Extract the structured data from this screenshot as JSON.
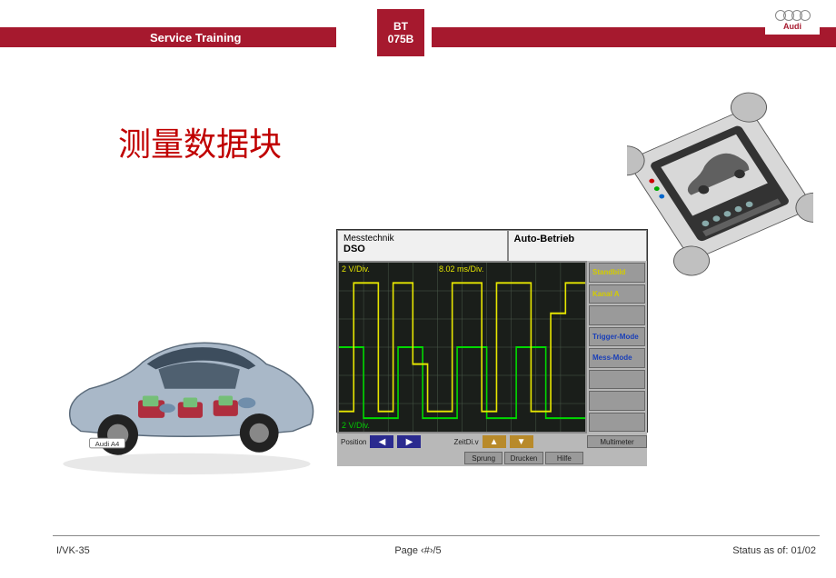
{
  "header": {
    "left": "Service Training",
    "mid_line1": "BT",
    "mid_line2": "075B",
    "brand": "Audi"
  },
  "title": "测量数据块",
  "car_label": "Audi A4",
  "scope": {
    "tab1_line1": "Messtechnik",
    "tab1_line2": "DSO",
    "tab2": "Auto-Betrieb",
    "top_left_y": "2 V/Div.",
    "top_time": "8.02 ms/Div.",
    "bot_left_y": "2 V/Div.",
    "grid_color": "#4a5a4a",
    "bg_color": "#1a1e1a",
    "trace_yellow_color": "#e6e600",
    "trace_green_color": "#00d800",
    "body_bg": "#b8b8b8",
    "btn_bg": "#9a9a9a",
    "arrow_bg": "#2a2a8f",
    "right_buttons": [
      {
        "label": "Standbild",
        "cls": "yellow"
      },
      {
        "label": "Kanal A",
        "cls": "yellow"
      },
      {
        "label": "",
        "cls": "green"
      },
      {
        "label": "Trigger-Mode",
        "cls": "blue"
      },
      {
        "label": "Mess-Mode",
        "cls": "blue"
      },
      {
        "label": "",
        "cls": ""
      },
      {
        "label": "",
        "cls": ""
      },
      {
        "label": "",
        "cls": ""
      }
    ],
    "bot1": {
      "pos_label": "Position",
      "zeit_label": "ZeitDi.v"
    },
    "bot2": [
      "Sprung",
      "Drucken",
      "Hilfe"
    ],
    "multimeter": "Multimeter",
    "trace_yellow": [
      {
        "x": 0,
        "y": 0.88
      },
      {
        "x": 0.06,
        "y": 0.88
      },
      {
        "x": 0.06,
        "y": 0.12
      },
      {
        "x": 0.16,
        "y": 0.12
      },
      {
        "x": 0.16,
        "y": 0.88
      },
      {
        "x": 0.22,
        "y": 0.88
      },
      {
        "x": 0.22,
        "y": 0.12
      },
      {
        "x": 0.3,
        "y": 0.12
      },
      {
        "x": 0.3,
        "y": 0.6
      },
      {
        "x": 0.36,
        "y": 0.6
      },
      {
        "x": 0.36,
        "y": 0.88
      },
      {
        "x": 0.46,
        "y": 0.88
      },
      {
        "x": 0.46,
        "y": 0.12
      },
      {
        "x": 0.58,
        "y": 0.12
      },
      {
        "x": 0.58,
        "y": 0.88
      },
      {
        "x": 0.64,
        "y": 0.88
      },
      {
        "x": 0.64,
        "y": 0.12
      },
      {
        "x": 0.78,
        "y": 0.12
      },
      {
        "x": 0.78,
        "y": 0.88
      },
      {
        "x": 0.86,
        "y": 0.88
      },
      {
        "x": 0.86,
        "y": 0.3
      },
      {
        "x": 0.92,
        "y": 0.3
      },
      {
        "x": 0.92,
        "y": 0.12
      },
      {
        "x": 1.0,
        "y": 0.12
      }
    ],
    "trace_green": [
      {
        "x": 0,
        "y": 0.5
      },
      {
        "x": 0.1,
        "y": 0.5
      },
      {
        "x": 0.1,
        "y": 0.92
      },
      {
        "x": 0.24,
        "y": 0.92
      },
      {
        "x": 0.24,
        "y": 0.5
      },
      {
        "x": 0.34,
        "y": 0.5
      },
      {
        "x": 0.34,
        "y": 0.92
      },
      {
        "x": 0.48,
        "y": 0.92
      },
      {
        "x": 0.48,
        "y": 0.5
      },
      {
        "x": 0.6,
        "y": 0.5
      },
      {
        "x": 0.6,
        "y": 0.92
      },
      {
        "x": 0.72,
        "y": 0.92
      },
      {
        "x": 0.72,
        "y": 0.5
      },
      {
        "x": 0.84,
        "y": 0.5
      },
      {
        "x": 0.84,
        "y": 0.92
      },
      {
        "x": 1.0,
        "y": 0.92
      }
    ]
  },
  "device": {
    "body_fill": "#d8d8d8",
    "body_stroke": "#555555",
    "corner_fill": "#c0c0c0",
    "dark_fill": "#333333",
    "screen_car_fill": "#606060"
  },
  "car": {
    "body_fill": "#a9b8c8",
    "body_stroke": "#5a6a7a",
    "glass_fill": "#2a3a4a",
    "wheel_fill": "#222222",
    "hub_fill": "#888888",
    "ecu_pad": "#b02030",
    "ecu_box": "#70c070",
    "floor_fill": "#e8e8e8"
  },
  "footer": {
    "left": "I/VK-35",
    "center": "Page ‹#›/5",
    "right": "Status as of: 01/02"
  }
}
